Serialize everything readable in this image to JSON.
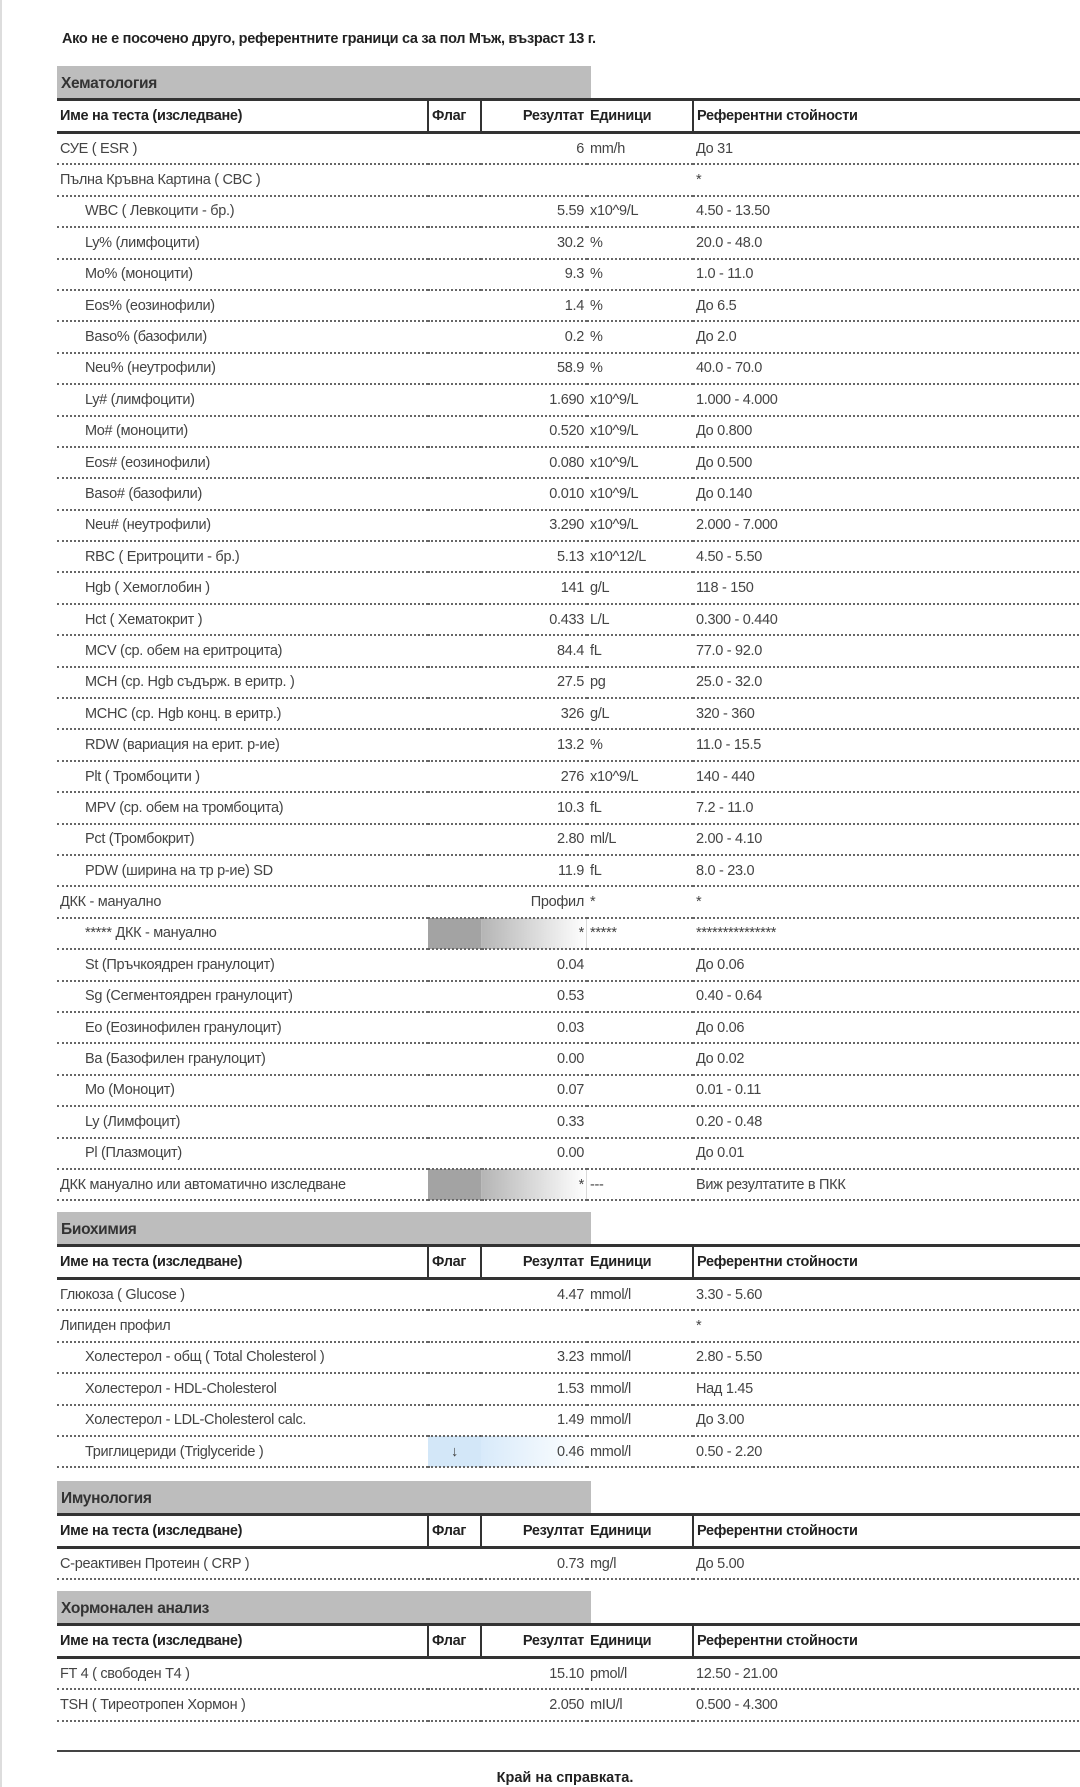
{
  "note": "Ако не е посочено друго, референтните граници са за пол Мъж, възраст 13 г.",
  "headers": {
    "name": "Име на теста (изследване)",
    "flag": "Флаг",
    "result": "Резултат",
    "units": "Единици",
    "ref": "Референтни стойности"
  },
  "colors": {
    "section_bg": "#bdbdbd",
    "flag_gray": "#a3a3a3",
    "flag_low_blue": "#d3e7f8"
  },
  "sections": [
    {
      "title": "Хематология",
      "rows": [
        {
          "name": "СУЕ ( ESR )",
          "indent": false,
          "flag": "",
          "result": "6",
          "unit": "mm/h",
          "ref": "До 31"
        },
        {
          "name": "Пълна Кръвна Картина ( CBC )",
          "indent": false,
          "flag": "",
          "result": "",
          "unit": "",
          "ref": "*"
        },
        {
          "name": "WBC ( Левкоцити - бр.)",
          "indent": true,
          "flag": "",
          "result": "5.59",
          "unit": "x10^9/L",
          "ref": "4.50 - 13.50"
        },
        {
          "name": "Ly% (лимфоцити)",
          "indent": true,
          "flag": "",
          "result": "30.2",
          "unit": "%",
          "ref": "20.0 - 48.0"
        },
        {
          "name": "Mo% (моноцити)",
          "indent": true,
          "flag": "",
          "result": "9.3",
          "unit": "%",
          "ref": "1.0 - 11.0"
        },
        {
          "name": "Eos% (еозинофили)",
          "indent": true,
          "flag": "",
          "result": "1.4",
          "unit": "%",
          "ref": "До 6.5"
        },
        {
          "name": "Baso% (базофили)",
          "indent": true,
          "flag": "",
          "result": "0.2",
          "unit": "%",
          "ref": "До 2.0"
        },
        {
          "name": "Neu% (неутрофили)",
          "indent": true,
          "flag": "",
          "result": "58.9",
          "unit": "%",
          "ref": "40.0 - 70.0"
        },
        {
          "name": "Ly# (лимфоцити)",
          "indent": true,
          "flag": "",
          "result": "1.690",
          "unit": "x10^9/L",
          "ref": "1.000 - 4.000"
        },
        {
          "name": "Mo# (моноцити)",
          "indent": true,
          "flag": "",
          "result": "0.520",
          "unit": "x10^9/L",
          "ref": "До 0.800"
        },
        {
          "name": "Eos# (еозинофили)",
          "indent": true,
          "flag": "",
          "result": "0.080",
          "unit": "x10^9/L",
          "ref": "До 0.500"
        },
        {
          "name": "Baso# (базофили)",
          "indent": true,
          "flag": "",
          "result": "0.010",
          "unit": "x10^9/L",
          "ref": "До 0.140"
        },
        {
          "name": "Neu# (неутрофили)",
          "indent": true,
          "flag": "",
          "result": "3.290",
          "unit": "x10^9/L",
          "ref": "2.000 - 7.000"
        },
        {
          "name": "RBC ( Еритроцити - бр.)",
          "indent": true,
          "flag": "",
          "result": "5.13",
          "unit": "x10^12/L",
          "ref": "4.50 - 5.50"
        },
        {
          "name": "Hgb ( Хемоглобин )",
          "indent": true,
          "flag": "",
          "result": "141",
          "unit": "g/L",
          "ref": "118 - 150"
        },
        {
          "name": "Hct ( Хематокрит )",
          "indent": true,
          "flag": "",
          "result": "0.433",
          "unit": "L/L",
          "ref": "0.300 - 0.440"
        },
        {
          "name": "MCV (ср. обем на еритроцита)",
          "indent": true,
          "flag": "",
          "result": "84.4",
          "unit": "fL",
          "ref": "77.0 - 92.0"
        },
        {
          "name": "MCH (ср. Hgb съдърж. в еритр. )",
          "indent": true,
          "flag": "",
          "result": "27.5",
          "unit": "pg",
          "ref": "25.0 - 32.0"
        },
        {
          "name": "MCHC (ср. Hgb конц. в еритр.)",
          "indent": true,
          "flag": "",
          "result": "326",
          "unit": "g/L",
          "ref": "320 - 360"
        },
        {
          "name": "RDW (вариация на ерит. р-ие)",
          "indent": true,
          "flag": "",
          "result": "13.2",
          "unit": "%",
          "ref": "11.0 - 15.5"
        },
        {
          "name": "Plt ( Тромбоцити )",
          "indent": true,
          "flag": "",
          "result": "276",
          "unit": "x10^9/L",
          "ref": "140 - 440"
        },
        {
          "name": "MPV (ср. обем на тромбоцита)",
          "indent": true,
          "flag": "",
          "result": "10.3",
          "unit": "fL",
          "ref": "7.2 - 11.0"
        },
        {
          "name": "Pct (Тромбокрит)",
          "indent": true,
          "flag": "",
          "result": "2.80",
          "unit": "ml/L",
          "ref": "2.00 - 4.10"
        },
        {
          "name": "PDW (ширина на тр р-ие) SD",
          "indent": true,
          "flag": "",
          "result": "11.9",
          "unit": "fL",
          "ref": "8.0 - 23.0"
        },
        {
          "name": "ДКК - мануално",
          "indent": false,
          "flag": "",
          "result": "Профил",
          "unit": "*",
          "ref": "*"
        },
        {
          "name": "***** ДКК - мануално",
          "indent": true,
          "flag": "",
          "result": "*",
          "unit": "*****",
          "ref": "***************",
          "highlight": "gray"
        },
        {
          "name": "St (Пръчкоядрен гранулоцит)",
          "indent": true,
          "flag": "",
          "result": "0.04",
          "unit": "",
          "ref": "До 0.06"
        },
        {
          "name": "Sg (Сегментоядрен гранулоцит)",
          "indent": true,
          "flag": "",
          "result": "0.53",
          "unit": "",
          "ref": "0.40 - 0.64"
        },
        {
          "name": "Eo (Еозинофилен гранулоцит)",
          "indent": true,
          "flag": "",
          "result": "0.03",
          "unit": "",
          "ref": "До 0.06"
        },
        {
          "name": "Ba (Базофилен гранулоцит)",
          "indent": true,
          "flag": "",
          "result": "0.00",
          "unit": "",
          "ref": "До 0.02"
        },
        {
          "name": "Mo (Моноцит)",
          "indent": true,
          "flag": "",
          "result": "0.07",
          "unit": "",
          "ref": "0.01 - 0.11"
        },
        {
          "name": "Ly (Лимфоцит)",
          "indent": true,
          "flag": "",
          "result": "0.33",
          "unit": "",
          "ref": "0.20 - 0.48"
        },
        {
          "name": "Pl (Плазмоцит)",
          "indent": true,
          "flag": "",
          "result": "0.00",
          "unit": "",
          "ref": "До 0.01"
        },
        {
          "name": "ДКК мануално или автоматично изследване",
          "indent": false,
          "flag": "",
          "result": "*",
          "unit": "---",
          "ref": "Виж резултатите в ПКК",
          "highlight": "gray"
        }
      ]
    },
    {
      "title": "Биохимия",
      "rows": [
        {
          "name": "Глюкоза ( Glucose )",
          "indent": false,
          "flag": "",
          "result": "4.47",
          "unit": "mmol/l",
          "ref": "3.30 - 5.60"
        },
        {
          "name": "Липиден профил",
          "indent": false,
          "flag": "",
          "result": "",
          "unit": "",
          "ref": "*"
        },
        {
          "name": "Холестерол - общ ( Total Cholesterol )",
          "indent": true,
          "flag": "",
          "result": "3.23",
          "unit": "mmol/l",
          "ref": "2.80 - 5.50"
        },
        {
          "name": "Холестерол - HDL-Cholesterol",
          "indent": true,
          "flag": "",
          "result": "1.53",
          "unit": "mmol/l",
          "ref": "Над 1.45"
        },
        {
          "name": "Холестерол - LDL-Cholesterol calc.",
          "indent": true,
          "flag": "",
          "result": "1.49",
          "unit": "mmol/l",
          "ref": "До 3.00"
        },
        {
          "name": "Триглицериди (Triglyceride )",
          "indent": true,
          "flag": "↓",
          "result": "0.46",
          "unit": "mmol/l",
          "ref": "0.50 - 2.20",
          "highlight": "blue"
        }
      ]
    },
    {
      "title": "Имунология",
      "rows": [
        {
          "name": "С-реактивен Протеин ( CRP )",
          "indent": false,
          "flag": "",
          "result": "0.73",
          "unit": "mg/l",
          "ref": "До 5.00"
        }
      ]
    },
    {
      "title": "Хормонален анализ",
      "rows": [
        {
          "name": "FT 4 ( свободен Т4 )",
          "indent": false,
          "flag": "",
          "result": "15.10",
          "unit": "pmol/l",
          "ref": "12.50 - 21.00"
        },
        {
          "name": "TSH ( Тиреотропен Хормон )",
          "indent": false,
          "flag": "",
          "result": "2.050",
          "unit": "mIU/l",
          "ref": "0.500 - 4.300"
        }
      ]
    }
  ],
  "footer": "Край на справката."
}
